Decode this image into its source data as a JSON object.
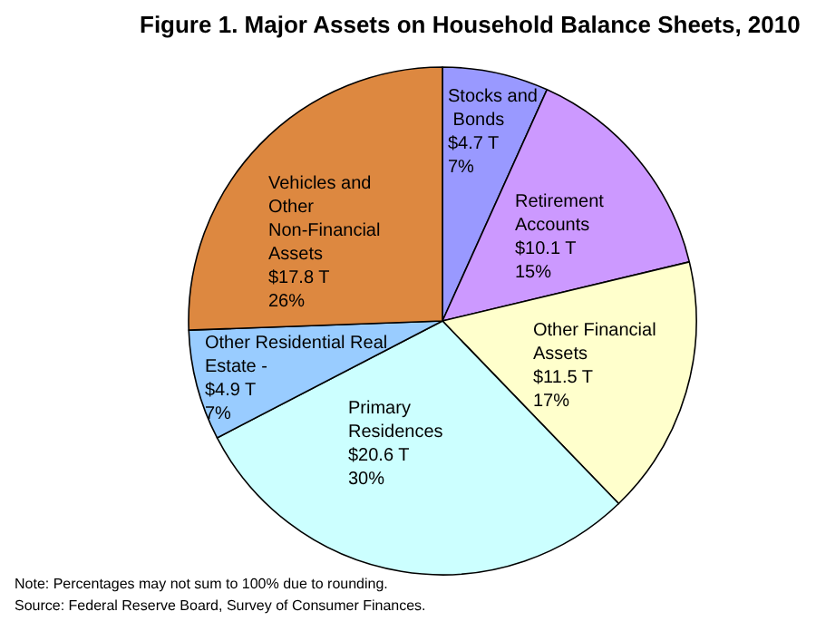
{
  "chart_data": {
    "type": "pie",
    "title": "Figure 1. Major Assets on Household Balance Sheets, 2010",
    "categories": [
      "Stocks and Bonds",
      "Retirement Accounts",
      "Other Financial Assets",
      "Primary Residences",
      "Other Residential Real Estate -",
      "Vehicles and Other Non-Financial Assets"
    ],
    "values": [
      4.7,
      10.1,
      11.5,
      20.6,
      4.9,
      17.8
    ],
    "value_labels": [
      "$4.7 T\n7%",
      "$10.1 T\n15%",
      "$11.5 T\n17%",
      "$20.6 T\n30%",
      "$4.9 T\n7%",
      "$17.8 T\n26%"
    ],
    "colors": [
      "#9999ff",
      "#cc99ff",
      "#ffffcc",
      "#ccffff",
      "#99ccff",
      "#dd8840"
    ],
    "annotations": [
      "Note: Percentages may not sum to 100% due to rounding.",
      "Source: Federal Reserve Board, Survey of Consumer Finances."
    ],
    "legend": false
  }
}
